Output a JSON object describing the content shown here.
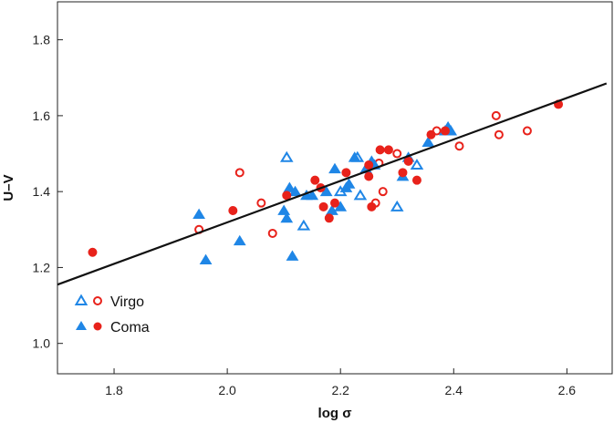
{
  "chart_data": {
    "type": "scatter",
    "xlabel": "log σ",
    "ylabel": "U–V",
    "xlim": [
      1.7,
      2.68
    ],
    "ylim": [
      0.92,
      1.9
    ],
    "xticks": [
      1.8,
      2.0,
      2.2,
      2.4,
      2.6
    ],
    "yticks": [
      1.0,
      1.2,
      1.4,
      1.6,
      1.8
    ],
    "tick_labels_x": [
      "1.8",
      "2.0",
      "2.2",
      "2.4",
      "2.6"
    ],
    "tick_labels_y": [
      "1.0",
      "1.2",
      "1.4",
      "1.6",
      "1.8"
    ],
    "grid": false,
    "legend_position": "bottom-left",
    "colors": {
      "blue": "#1f86e6",
      "red": "#e8221b",
      "line": "#111111"
    },
    "legend": [
      {
        "label": "Virgo",
        "filled": false
      },
      {
        "label": "Coma",
        "filled": true
      }
    ],
    "fit_line": {
      "x": [
        1.7,
        2.67
      ],
      "y": [
        1.155,
        1.685
      ]
    },
    "series": [
      {
        "name": "Virgo",
        "marker": "triangle",
        "color": "blue",
        "filled": false,
        "points": [
          [
            2.105,
            1.49
          ],
          [
            2.135,
            1.31
          ],
          [
            2.23,
            1.49
          ],
          [
            2.235,
            1.39
          ],
          [
            2.3,
            1.36
          ],
          [
            2.335,
            1.47
          ],
          [
            2.2,
            1.4
          ]
        ]
      },
      {
        "name": "Virgo",
        "marker": "circle",
        "color": "red",
        "filled": false,
        "points": [
          [
            1.95,
            1.3
          ],
          [
            2.022,
            1.45
          ],
          [
            2.06,
            1.37
          ],
          [
            2.08,
            1.29
          ],
          [
            2.262,
            1.37
          ],
          [
            2.268,
            1.475
          ],
          [
            2.275,
            1.4
          ],
          [
            2.3,
            1.5
          ],
          [
            2.37,
            1.56
          ],
          [
            2.41,
            1.52
          ],
          [
            2.475,
            1.6
          ],
          [
            2.48,
            1.55
          ],
          [
            2.53,
            1.56
          ]
        ]
      },
      {
        "name": "Coma",
        "marker": "triangle",
        "color": "blue",
        "filled": true,
        "points": [
          [
            1.95,
            1.34
          ],
          [
            1.962,
            1.22
          ],
          [
            2.022,
            1.27
          ],
          [
            2.1,
            1.35
          ],
          [
            2.105,
            1.33
          ],
          [
            2.11,
            1.41
          ],
          [
            2.115,
            1.23
          ],
          [
            2.12,
            1.4
          ],
          [
            2.14,
            1.39
          ],
          [
            2.15,
            1.39
          ],
          [
            2.175,
            1.4
          ],
          [
            2.185,
            1.35
          ],
          [
            2.19,
            1.46
          ],
          [
            2.2,
            1.36
          ],
          [
            2.21,
            1.41
          ],
          [
            2.215,
            1.42
          ],
          [
            2.225,
            1.49
          ],
          [
            2.245,
            1.46
          ],
          [
            2.255,
            1.48
          ],
          [
            2.26,
            1.47
          ],
          [
            2.31,
            1.44
          ],
          [
            2.32,
            1.49
          ],
          [
            2.355,
            1.53
          ],
          [
            2.385,
            1.56
          ],
          [
            2.39,
            1.57
          ],
          [
            2.395,
            1.56
          ]
        ]
      },
      {
        "name": "Coma",
        "marker": "circle",
        "color": "red",
        "filled": true,
        "points": [
          [
            1.762,
            1.24
          ],
          [
            2.01,
            1.35
          ],
          [
            2.105,
            1.39
          ],
          [
            2.155,
            1.43
          ],
          [
            2.165,
            1.41
          ],
          [
            2.17,
            1.36
          ],
          [
            2.18,
            1.33
          ],
          [
            2.19,
            1.37
          ],
          [
            2.21,
            1.45
          ],
          [
            2.25,
            1.44
          ],
          [
            2.25,
            1.47
          ],
          [
            2.255,
            1.36
          ],
          [
            2.27,
            1.51
          ],
          [
            2.285,
            1.51
          ],
          [
            2.31,
            1.45
          ],
          [
            2.32,
            1.48
          ],
          [
            2.335,
            1.43
          ],
          [
            2.36,
            1.55
          ],
          [
            2.385,
            1.56
          ],
          [
            2.585,
            1.63
          ]
        ]
      }
    ]
  }
}
